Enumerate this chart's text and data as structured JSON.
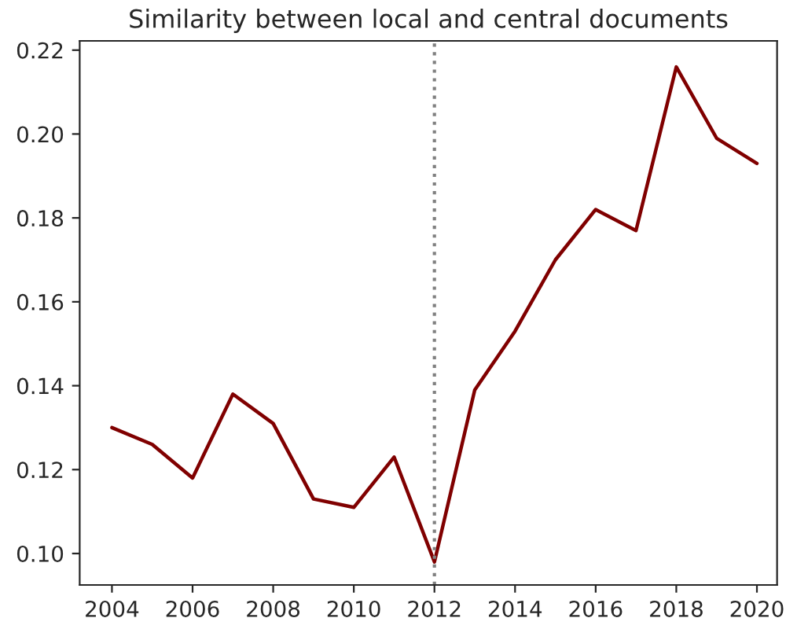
{
  "chart_data": {
    "type": "line",
    "title": "Similarity between local and central documents",
    "x": [
      2004,
      2005,
      2006,
      2007,
      2008,
      2009,
      2010,
      2011,
      2012,
      2013,
      2014,
      2015,
      2016,
      2017,
      2018,
      2019,
      2020
    ],
    "series": [
      {
        "color": "#800000",
        "values": [
          0.13,
          0.126,
          0.118,
          0.138,
          0.131,
          0.113,
          0.111,
          0.123,
          0.098,
          0.139,
          0.153,
          0.17,
          0.182,
          0.177,
          0.216,
          0.199,
          0.193
        ]
      }
    ],
    "xlim": [
      2003.2,
      2020.5
    ],
    "ylim": [
      0.0925,
      0.2222
    ],
    "xticks": [
      2004,
      2006,
      2008,
      2010,
      2012,
      2014,
      2016,
      2018,
      2020
    ],
    "yticks": [
      {
        "value": 0.1,
        "label": "0.10"
      },
      {
        "value": 0.12,
        "label": "0.12"
      },
      {
        "value": 0.14,
        "label": "0.14"
      },
      {
        "value": 0.16,
        "label": "0.16"
      },
      {
        "value": 0.18,
        "label": "0.18"
      },
      {
        "value": 0.2,
        "label": "0.20"
      },
      {
        "value": 0.22,
        "label": "0.22"
      }
    ],
    "ref_lines": [
      {
        "axis": "x",
        "value": 2012,
        "color": "#808080",
        "line_style": "dotted"
      }
    ],
    "grid": false,
    "legend": false,
    "marker": "none",
    "line_style": "solid"
  }
}
